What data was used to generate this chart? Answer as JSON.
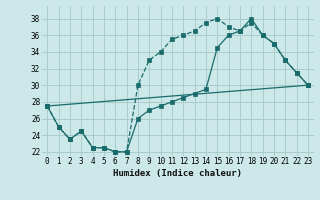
{
  "xlabel": "Humidex (Indice chaleur)",
  "background_color": "#cce8e8",
  "grid_color": "#aacccc",
  "line_color": "#1a6b6b",
  "xlim": [
    -0.5,
    23.5
  ],
  "ylim": [
    21.5,
    39.5
  ],
  "xticks": [
    0,
    1,
    2,
    3,
    4,
    5,
    6,
    7,
    8,
    9,
    10,
    11,
    12,
    13,
    14,
    15,
    16,
    17,
    18,
    19,
    20,
    21,
    22,
    23
  ],
  "yticks": [
    22,
    24,
    26,
    28,
    30,
    32,
    34,
    36,
    38
  ],
  "series": [
    {
      "linestyle": "--",
      "x": [
        0,
        1,
        2,
        3,
        4,
        5,
        6,
        7,
        8,
        9,
        10,
        11,
        12,
        13,
        14,
        15,
        16,
        17,
        18,
        19,
        20,
        21,
        22,
        23
      ],
      "y": [
        27.5,
        25.0,
        23.5,
        24.5,
        22.5,
        22.5,
        22.0,
        22.0,
        30.0,
        33.0,
        34.0,
        35.5,
        36.0,
        36.5,
        37.5,
        38.0,
        37.0,
        36.5,
        37.5,
        36.0,
        35.0,
        33.0,
        31.5,
        30.0
      ]
    },
    {
      "linestyle": "-",
      "x": [
        0,
        1,
        2,
        3,
        4,
        5,
        6,
        7,
        8,
        9,
        10,
        11,
        12,
        13,
        14,
        15,
        16,
        17,
        18,
        19,
        20,
        21,
        22,
        23
      ],
      "y": [
        27.5,
        25.0,
        23.5,
        24.5,
        22.5,
        22.5,
        22.0,
        22.0,
        26.0,
        27.0,
        27.5,
        28.0,
        28.5,
        29.0,
        29.5,
        34.5,
        36.0,
        36.5,
        38.0,
        36.0,
        35.0,
        33.0,
        31.5,
        30.0
      ]
    },
    {
      "linestyle": "-",
      "x": [
        0,
        23
      ],
      "y": [
        27.5,
        30.0
      ]
    }
  ]
}
